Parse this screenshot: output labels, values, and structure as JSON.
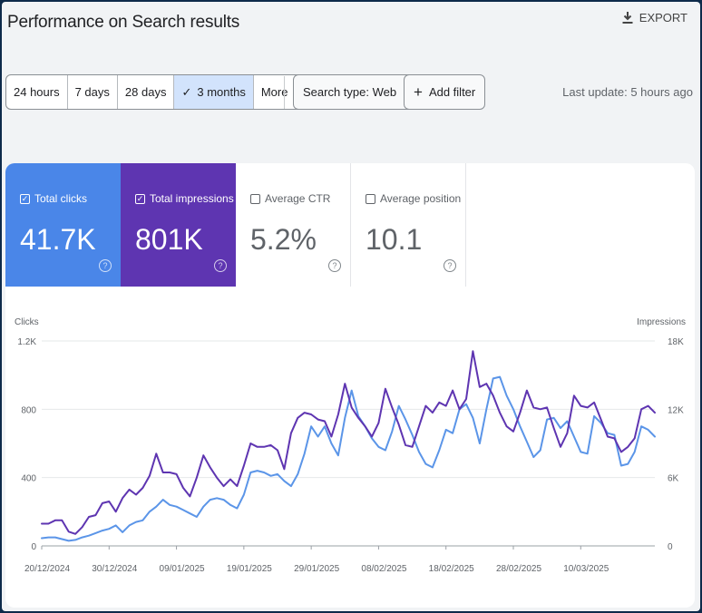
{
  "header": {
    "title": "Performance on Search results",
    "export_label": "EXPORT"
  },
  "filters": {
    "ranges": [
      {
        "label": "24 hours",
        "active": false
      },
      {
        "label": "7 days",
        "active": false
      },
      {
        "label": "28 days",
        "active": false
      },
      {
        "label": "3 months",
        "active": true
      },
      {
        "label": "More",
        "active": false
      }
    ],
    "search_type": "Search type: Web",
    "add_filter": "Add filter",
    "last_update": "Last update: 5 hours ago"
  },
  "metrics": {
    "clicks": {
      "label": "Total clicks",
      "value": "41.7K",
      "checked": true,
      "color": "#4a86e8"
    },
    "impressions": {
      "label": "Total impressions",
      "value": "801K",
      "checked": true,
      "color": "#5e35b1"
    },
    "ctr": {
      "label": "Average CTR",
      "value": "5.2%",
      "checked": false
    },
    "position": {
      "label": "Average position",
      "value": "10.1",
      "checked": false
    },
    "help_glyph": "?"
  },
  "chart_data": {
    "type": "line",
    "left_axis_label": "Clicks",
    "right_axis_label": "Impressions",
    "left_ticks": [
      {
        "v": 0,
        "t": "0"
      },
      {
        "v": 400,
        "t": "400"
      },
      {
        "v": 800,
        "t": "800"
      },
      {
        "v": 1200,
        "t": "1.2K"
      }
    ],
    "right_ticks": [
      {
        "v": 0,
        "t": "0"
      },
      {
        "v": 6000,
        "t": "6K"
      },
      {
        "v": 12000,
        "t": "12K"
      },
      {
        "v": 18000,
        "t": "18K"
      }
    ],
    "ylim_left": [
      0,
      1200
    ],
    "ylim_right": [
      0,
      18000
    ],
    "x_tick_labels": [
      {
        "i": 0,
        "t": "20/12/2024"
      },
      {
        "i": 10,
        "t": "30/12/2024"
      },
      {
        "i": 20,
        "t": "09/01/2025"
      },
      {
        "i": 30,
        "t": "19/01/2025"
      },
      {
        "i": 40,
        "t": "29/01/2025"
      },
      {
        "i": 50,
        "t": "08/02/2025"
      },
      {
        "i": 60,
        "t": "18/02/2025"
      },
      {
        "i": 70,
        "t": "28/02/2025"
      },
      {
        "i": 80,
        "t": "10/03/2025"
      }
    ],
    "grid": true,
    "series": [
      {
        "name": "Total clicks",
        "color": "#5b95e8",
        "axis": "left",
        "values": [
          45,
          50,
          50,
          40,
          30,
          35,
          50,
          60,
          75,
          90,
          100,
          120,
          80,
          120,
          140,
          150,
          200,
          230,
          270,
          240,
          230,
          210,
          190,
          170,
          230,
          270,
          280,
          270,
          240,
          220,
          300,
          430,
          440,
          430,
          410,
          420,
          380,
          350,
          420,
          540,
          700,
          640,
          700,
          600,
          530,
          750,
          910,
          760,
          700,
          630,
          580,
          560,
          670,
          820,
          740,
          650,
          550,
          480,
          460,
          560,
          680,
          660,
          800,
          830,
          750,
          600,
          800,
          980,
          990,
          880,
          800,
          700,
          610,
          520,
          560,
          740,
          750,
          690,
          730,
          640,
          550,
          540,
          760,
          720,
          660,
          650,
          470,
          480,
          550,
          700,
          680,
          640
        ]
      },
      {
        "name": "Total impressions",
        "color": "#5e35b1",
        "axis": "right",
        "values": [
          1950,
          1950,
          2250,
          2250,
          1250,
          1050,
          1650,
          2550,
          2700,
          3750,
          3900,
          3000,
          4200,
          4950,
          4500,
          5100,
          6150,
          8100,
          6450,
          6450,
          6300,
          5100,
          4350,
          6000,
          7950,
          6900,
          6000,
          5250,
          5850,
          5250,
          7050,
          9000,
          8700,
          8700,
          8850,
          8400,
          6750,
          9900,
          11250,
          11700,
          11550,
          11100,
          10950,
          9600,
          11550,
          14250,
          12150,
          11250,
          10500,
          9600,
          10800,
          13800,
          12150,
          10650,
          8850,
          8700,
          10500,
          12300,
          11700,
          12600,
          12300,
          13650,
          12000,
          12900,
          17100,
          13950,
          14250,
          13200,
          11700,
          10500,
          10050,
          11700,
          13650,
          12150,
          12000,
          12150,
          10350,
          8700,
          9900,
          13200,
          12300,
          12150,
          12600,
          11100,
          9600,
          9450,
          8250,
          8700,
          9450,
          12000,
          12300,
          11700
        ]
      }
    ]
  }
}
